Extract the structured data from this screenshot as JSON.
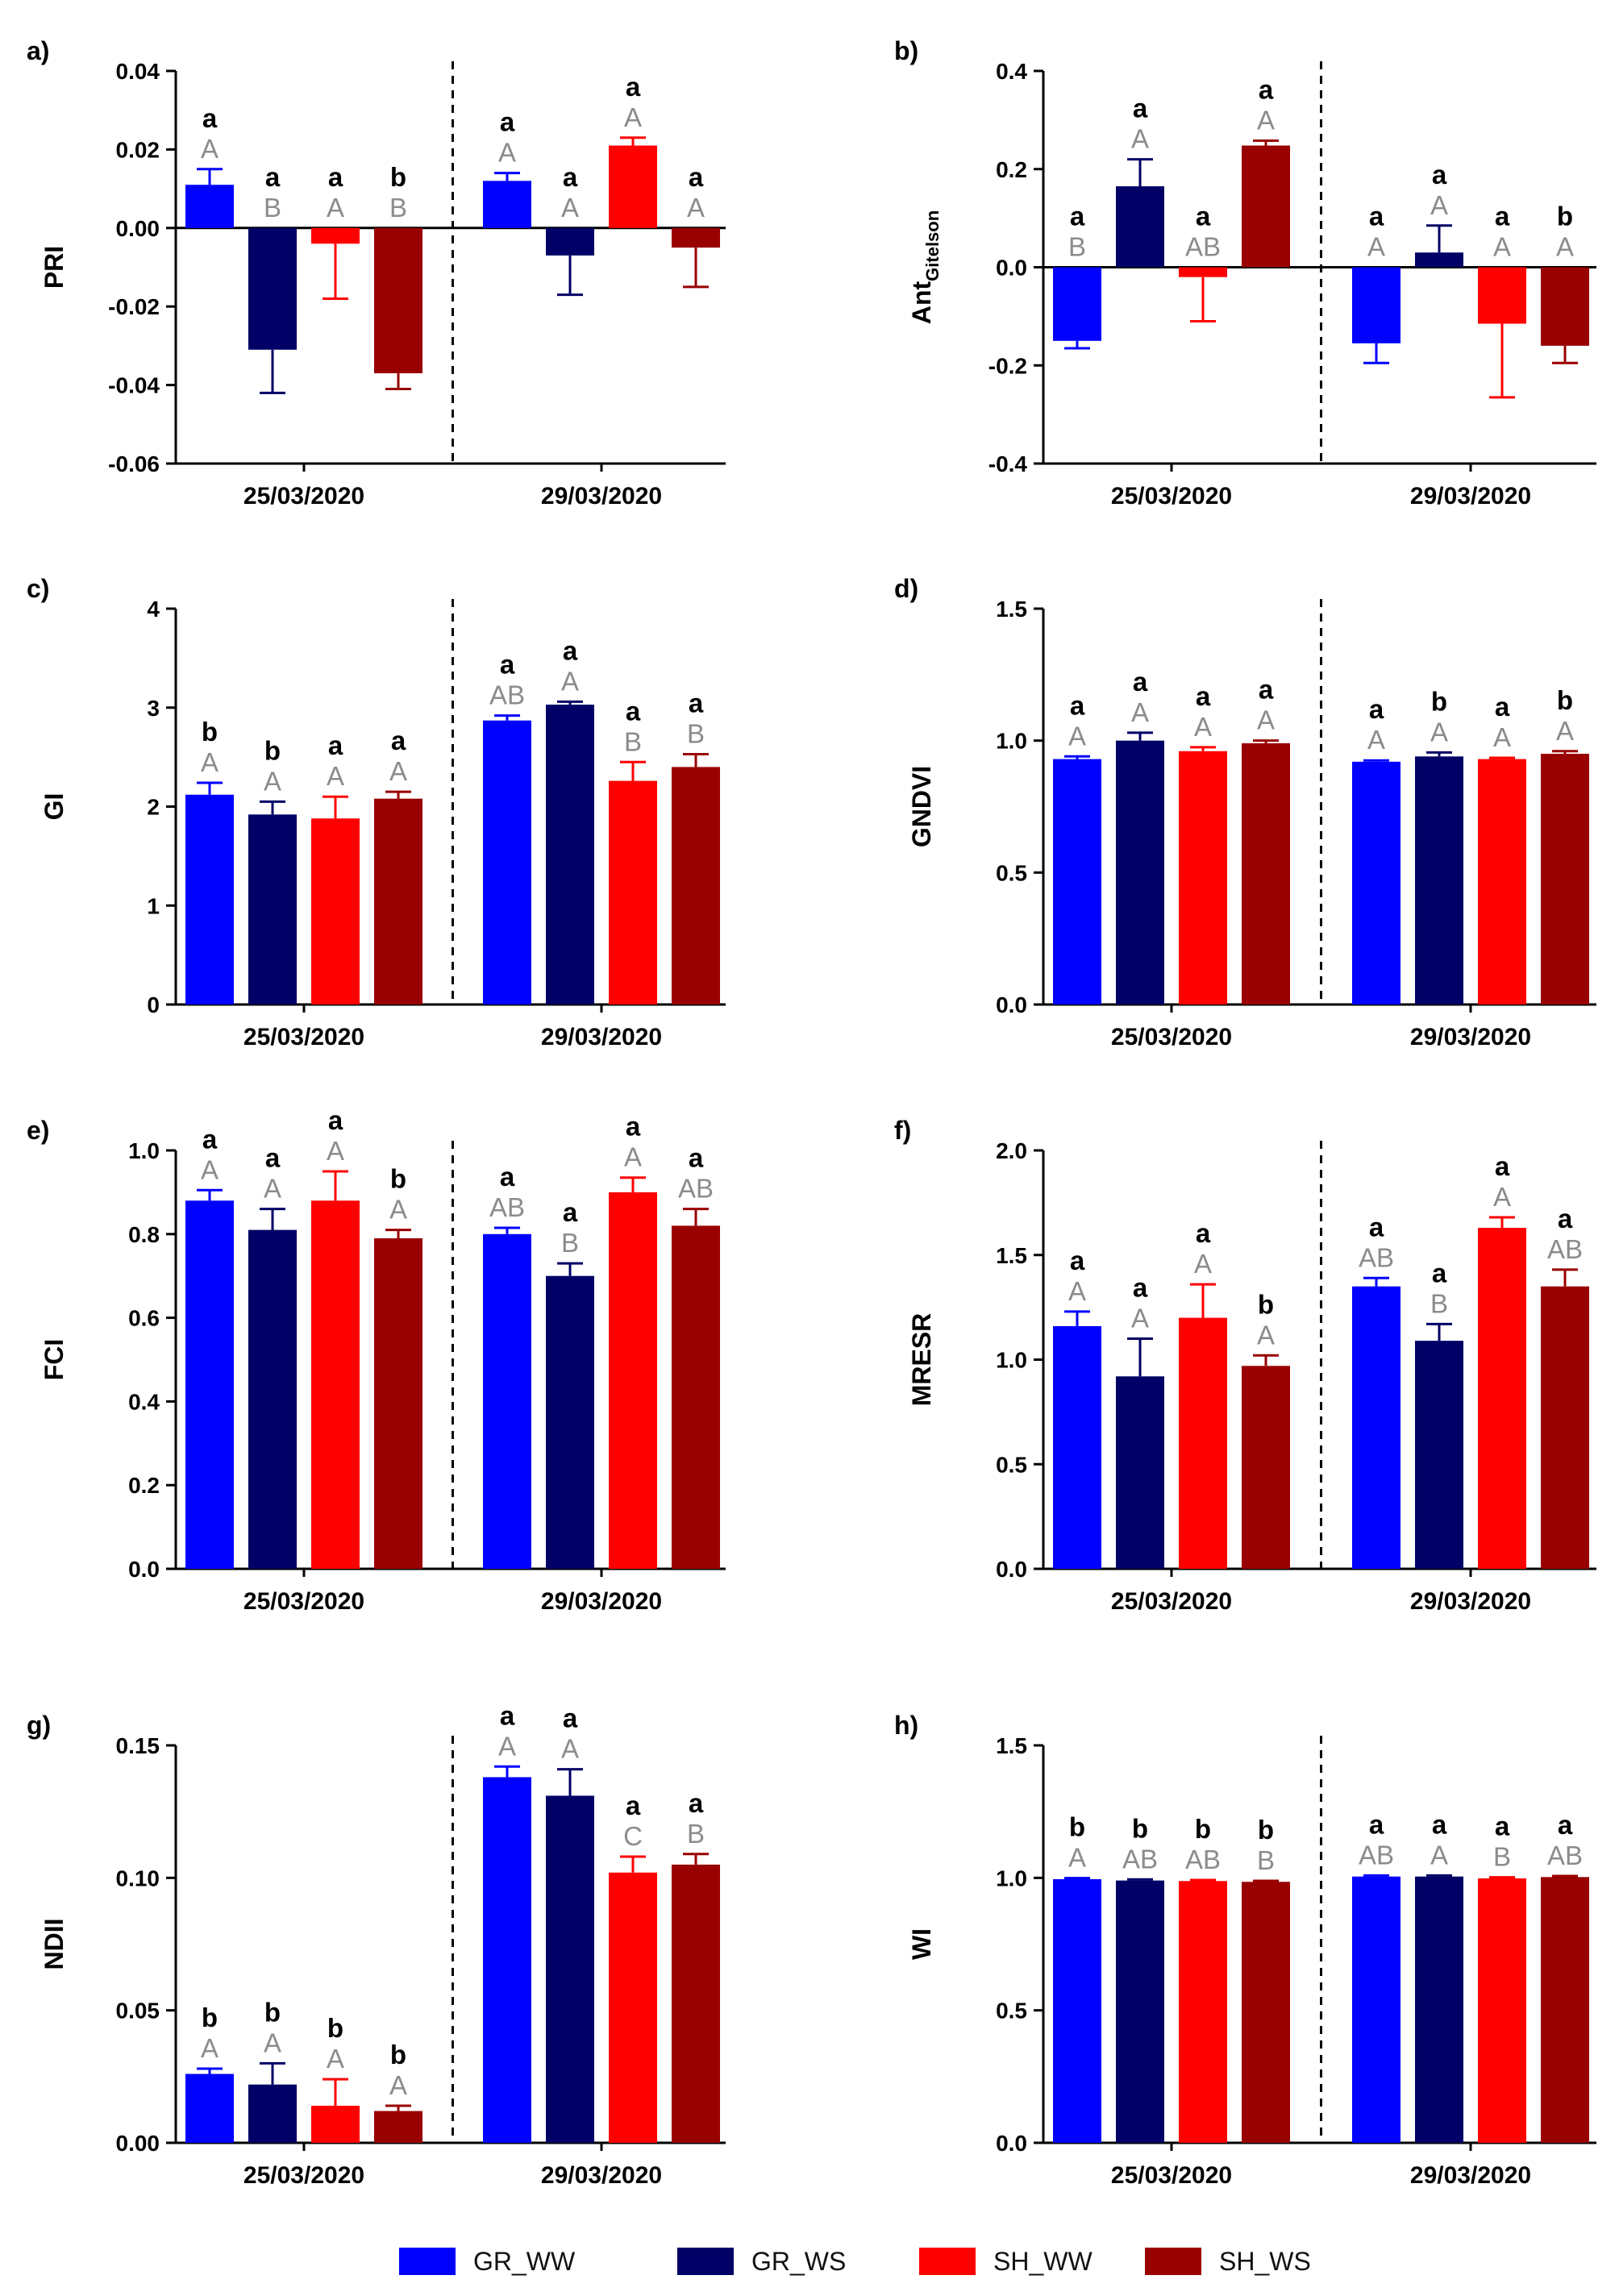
{
  "colors": {
    "GR_WW": "#0000ff",
    "GR_WS": "#000066",
    "SH_WW": "#ff0000",
    "SH_WS": "#990000",
    "upper_letter": "#000000",
    "lower_letter": "#8c8c8c"
  },
  "legend": {
    "items": [
      {
        "key": "GR_WW",
        "label": "GR_WW"
      },
      {
        "key": "GR_WS",
        "label": "GR_WS"
      },
      {
        "key": "SH_WW",
        "label": "SH_WW"
      },
      {
        "key": "SH_WS",
        "label": "SH_WS"
      }
    ]
  },
  "chart_data": [
    {
      "id": "a",
      "panel_label": "a)",
      "type": "bar",
      "ylabel": "PRI",
      "ylim": [
        -0.06,
        0.04
      ],
      "yticks": [
        -0.06,
        -0.04,
        -0.02,
        0.0,
        0.02,
        0.04
      ],
      "ytick_labels": [
        "-0.06",
        "-0.04",
        "-0.02",
        "0.00",
        "0.02",
        "0.04"
      ],
      "categories": [
        "25/03/2020",
        "29/03/2020"
      ],
      "series": [
        {
          "name": "GR_WW",
          "values": [
            0.011,
            0.012
          ],
          "errors": [
            0.004,
            0.002
          ],
          "upper": [
            "a",
            "a"
          ],
          "lower": [
            "A",
            "A"
          ]
        },
        {
          "name": "GR_WS",
          "values": [
            -0.031,
            -0.007
          ],
          "errors": [
            0.011,
            0.01
          ],
          "upper": [
            "a",
            "a"
          ],
          "lower": [
            "B",
            "A"
          ]
        },
        {
          "name": "SH_WW",
          "values": [
            -0.004,
            0.021
          ],
          "errors": [
            0.014,
            0.002
          ],
          "upper": [
            "a",
            "a"
          ],
          "lower": [
            "A",
            "A"
          ]
        },
        {
          "name": "SH_WS",
          "values": [
            -0.037,
            -0.005
          ],
          "errors": [
            0.004,
            0.01
          ],
          "upper": [
            "b",
            "a"
          ],
          "lower": [
            "B",
            "A"
          ]
        }
      ]
    },
    {
      "id": "b",
      "panel_label": "b)",
      "type": "bar",
      "ylabel": "Ant",
      "ylabel_sub": "Gitelson",
      "ylim": [
        -0.4,
        0.4
      ],
      "yticks": [
        -0.4,
        -0.2,
        0.0,
        0.2,
        0.4
      ],
      "ytick_labels": [
        "-0.4",
        "-0.2",
        "0.0",
        "0.2",
        "0.4"
      ],
      "categories": [
        "25/03/2020",
        "29/03/2020"
      ],
      "series": [
        {
          "name": "GR_WW",
          "values": [
            -0.15,
            -0.155
          ],
          "errors": [
            0.015,
            0.04
          ],
          "upper": [
            "a",
            "a"
          ],
          "lower": [
            "B",
            "A"
          ]
        },
        {
          "name": "GR_WS",
          "values": [
            0.165,
            0.03
          ],
          "errors": [
            0.055,
            0.055
          ],
          "upper": [
            "a",
            "a"
          ],
          "lower": [
            "A",
            "A"
          ]
        },
        {
          "name": "SH_WW",
          "values": [
            -0.02,
            -0.115
          ],
          "errors": [
            0.09,
            0.15
          ],
          "upper": [
            "a",
            "a"
          ],
          "lower": [
            "AB",
            "A"
          ]
        },
        {
          "name": "SH_WS",
          "values": [
            0.248,
            -0.16
          ],
          "errors": [
            0.01,
            0.035
          ],
          "upper": [
            "a",
            "b"
          ],
          "lower": [
            "A",
            "A"
          ]
        }
      ]
    },
    {
      "id": "c",
      "panel_label": "c)",
      "type": "bar",
      "ylabel": "GI",
      "ylim": [
        0,
        4
      ],
      "yticks": [
        0,
        1,
        2,
        3,
        4
      ],
      "ytick_labels": [
        "0",
        "1",
        "2",
        "3",
        "4"
      ],
      "categories": [
        "25/03/2020",
        "29/03/2020"
      ],
      "series": [
        {
          "name": "GR_WW",
          "values": [
            2.12,
            2.87
          ],
          "errors": [
            0.12,
            0.05
          ],
          "upper": [
            "b",
            "a"
          ],
          "lower": [
            "A",
            "AB"
          ]
        },
        {
          "name": "GR_WS",
          "values": [
            1.92,
            3.03
          ],
          "errors": [
            0.13,
            0.03
          ],
          "upper": [
            "b",
            "a"
          ],
          "lower": [
            "A",
            "A"
          ]
        },
        {
          "name": "SH_WW",
          "values": [
            1.88,
            2.26
          ],
          "errors": [
            0.22,
            0.19
          ],
          "upper": [
            "a",
            "a"
          ],
          "lower": [
            "A",
            "B"
          ]
        },
        {
          "name": "SH_WS",
          "values": [
            2.08,
            2.4
          ],
          "errors": [
            0.07,
            0.13
          ],
          "upper": [
            "a",
            "a"
          ],
          "lower": [
            "A",
            "B"
          ]
        }
      ]
    },
    {
      "id": "d",
      "panel_label": "d)",
      "type": "bar",
      "ylabel": "GNDVI",
      "ylim": [
        0,
        1.5
      ],
      "yticks": [
        0,
        0.5,
        1.0,
        1.5
      ],
      "ytick_labels": [
        "0.0",
        "0.5",
        "1.0",
        "1.5"
      ],
      "categories": [
        "25/03/2020",
        "29/03/2020"
      ],
      "series": [
        {
          "name": "GR_WW",
          "values": [
            0.93,
            0.92
          ],
          "errors": [
            0.01,
            0.005
          ],
          "upper": [
            "a",
            "a"
          ],
          "lower": [
            "A",
            "A"
          ]
        },
        {
          "name": "GR_WS",
          "values": [
            1.0,
            0.94
          ],
          "errors": [
            0.03,
            0.015
          ],
          "upper": [
            "a",
            "b"
          ],
          "lower": [
            "A",
            "A"
          ]
        },
        {
          "name": "SH_WW",
          "values": [
            0.96,
            0.93
          ],
          "errors": [
            0.015,
            0.005
          ],
          "upper": [
            "a",
            "a"
          ],
          "lower": [
            "A",
            "A"
          ]
        },
        {
          "name": "SH_WS",
          "values": [
            0.99,
            0.95
          ],
          "errors": [
            0.01,
            0.01
          ],
          "upper": [
            "a",
            "b"
          ],
          "lower": [
            "A",
            "A"
          ]
        }
      ]
    },
    {
      "id": "e",
      "panel_label": "e)",
      "type": "bar",
      "ylabel": "FCI",
      "ylim": [
        0,
        1.0
      ],
      "yticks": [
        0,
        0.2,
        0.4,
        0.6,
        0.8,
        1.0
      ],
      "ytick_labels": [
        "0.0",
        "0.2",
        "0.4",
        "0.6",
        "0.8",
        "1.0"
      ],
      "categories": [
        "25/03/2020",
        "29/03/2020"
      ],
      "series": [
        {
          "name": "GR_WW",
          "values": [
            0.88,
            0.8
          ],
          "errors": [
            0.025,
            0.015
          ],
          "upper": [
            "a",
            "a"
          ],
          "lower": [
            "A",
            "AB"
          ]
        },
        {
          "name": "GR_WS",
          "values": [
            0.81,
            0.7
          ],
          "errors": [
            0.05,
            0.03
          ],
          "upper": [
            "a",
            "a"
          ],
          "lower": [
            "A",
            "B"
          ]
        },
        {
          "name": "SH_WW",
          "values": [
            0.88,
            0.9
          ],
          "errors": [
            0.07,
            0.035
          ],
          "upper": [
            "a",
            "a"
          ],
          "lower": [
            "A",
            "A"
          ]
        },
        {
          "name": "SH_WS",
          "values": [
            0.79,
            0.82
          ],
          "errors": [
            0.02,
            0.04
          ],
          "upper": [
            "b",
            "a"
          ],
          "lower": [
            "A",
            "AB"
          ]
        }
      ]
    },
    {
      "id": "f",
      "panel_label": "f)",
      "type": "bar",
      "ylabel": "MRESR",
      "ylim": [
        0,
        2.0
      ],
      "yticks": [
        0,
        0.5,
        1.0,
        1.5,
        2.0
      ],
      "ytick_labels": [
        "0.0",
        "0.5",
        "1.0",
        "1.5",
        "2.0"
      ],
      "categories": [
        "25/03/2020",
        "29/03/2020"
      ],
      "series": [
        {
          "name": "GR_WW",
          "values": [
            1.16,
            1.35
          ],
          "errors": [
            0.07,
            0.04
          ],
          "upper": [
            "a",
            "a"
          ],
          "lower": [
            "A",
            "AB"
          ]
        },
        {
          "name": "GR_WS",
          "values": [
            0.92,
            1.09
          ],
          "errors": [
            0.18,
            0.08
          ],
          "upper": [
            "a",
            "a"
          ],
          "lower": [
            "A",
            "B"
          ]
        },
        {
          "name": "SH_WW",
          "values": [
            1.2,
            1.63
          ],
          "errors": [
            0.16,
            0.05
          ],
          "upper": [
            "a",
            "a"
          ],
          "lower": [
            "A",
            "A"
          ]
        },
        {
          "name": "SH_WS",
          "values": [
            0.97,
            1.35
          ],
          "errors": [
            0.05,
            0.08
          ],
          "upper": [
            "b",
            "a"
          ],
          "lower": [
            "A",
            "AB"
          ]
        }
      ]
    },
    {
      "id": "g",
      "panel_label": "g)",
      "type": "bar",
      "ylabel": "NDII",
      "ylim": [
        0,
        0.15
      ],
      "yticks": [
        0,
        0.05,
        0.1,
        0.15
      ],
      "ytick_labels": [
        "0.00",
        "0.05",
        "0.10",
        "0.15"
      ],
      "categories": [
        "25/03/2020",
        "29/03/2020"
      ],
      "series": [
        {
          "name": "GR_WW",
          "values": [
            0.026,
            0.138
          ],
          "errors": [
            0.002,
            0.004
          ],
          "upper": [
            "b",
            "a"
          ],
          "lower": [
            "A",
            "A"
          ]
        },
        {
          "name": "GR_WS",
          "values": [
            0.022,
            0.131
          ],
          "errors": [
            0.008,
            0.01
          ],
          "upper": [
            "b",
            "a"
          ],
          "lower": [
            "A",
            "A"
          ]
        },
        {
          "name": "SH_WW",
          "values": [
            0.014,
            0.102
          ],
          "errors": [
            0.01,
            0.006
          ],
          "upper": [
            "b",
            "a"
          ],
          "lower": [
            "A",
            "C"
          ]
        },
        {
          "name": "SH_WS",
          "values": [
            0.012,
            0.105
          ],
          "errors": [
            0.002,
            0.004
          ],
          "upper": [
            "b",
            "a"
          ],
          "lower": [
            "A",
            "B"
          ]
        }
      ]
    },
    {
      "id": "h",
      "panel_label": "h)",
      "type": "bar",
      "ylabel": "WI",
      "ylim": [
        0,
        1.5
      ],
      "yticks": [
        0,
        0.5,
        1.0,
        1.5
      ],
      "ytick_labels": [
        "0.0",
        "0.5",
        "1.0",
        "1.5"
      ],
      "categories": [
        "25/03/2020",
        "29/03/2020"
      ],
      "series": [
        {
          "name": "GR_WW",
          "values": [
            0.995,
            1.005
          ],
          "errors": [
            0.004,
            0.004
          ],
          "upper": [
            "b",
            "a"
          ],
          "lower": [
            "A",
            "AB"
          ]
        },
        {
          "name": "GR_WS",
          "values": [
            0.99,
            1.005
          ],
          "errors": [
            0.004,
            0.004
          ],
          "upper": [
            "b",
            "a"
          ],
          "lower": [
            "AB",
            "A"
          ]
        },
        {
          "name": "SH_WW",
          "values": [
            0.988,
            0.998
          ],
          "errors": [
            0.004,
            0.004
          ],
          "upper": [
            "b",
            "a"
          ],
          "lower": [
            "AB",
            "B"
          ]
        },
        {
          "name": "SH_WS",
          "values": [
            0.985,
            1.003
          ],
          "errors": [
            0.004,
            0.004
          ],
          "upper": [
            "b",
            "a"
          ],
          "lower": [
            "B",
            "AB"
          ]
        }
      ]
    }
  ]
}
